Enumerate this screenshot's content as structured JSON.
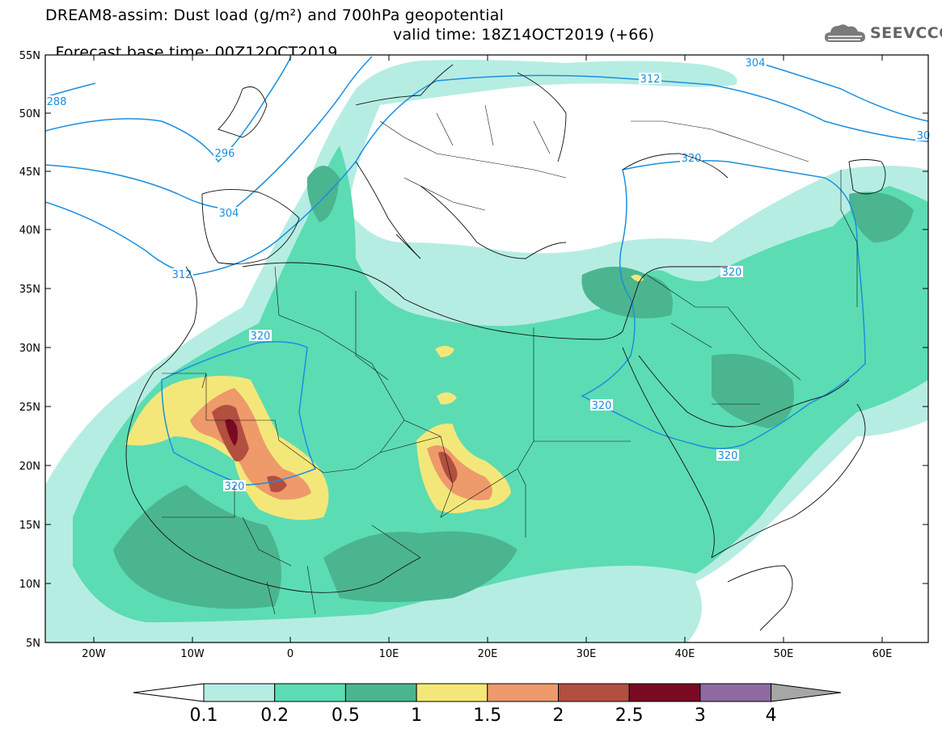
{
  "title": {
    "line1": "DREAM8-assim: Dust load (g/m²) and 700hPa geopotential",
    "base_time": "Forecast base time: 00Z12OCT2019",
    "valid_time": "valid time: 18Z14OCT2019 (+66)"
  },
  "logo": {
    "text": "SEEVCCC",
    "icon": "cloud-icon"
  },
  "axes": {
    "lat_labels": [
      "55N",
      "50N",
      "45N",
      "40N",
      "35N",
      "30N",
      "25N",
      "20N",
      "15N",
      "10N",
      "5N"
    ],
    "lon_labels": [
      "20W",
      "10W",
      "0",
      "10E",
      "20E",
      "30E",
      "40E",
      "50E",
      "60E"
    ]
  },
  "contours": {
    "labels": [
      "288",
      "296",
      "304",
      "312",
      "320",
      "320",
      "320",
      "320",
      "320",
      "320",
      "304",
      "312",
      "30"
    ],
    "color": "#1a8fe0"
  },
  "colorbar": {
    "labels": [
      "0.1",
      "0.2",
      "0.5",
      "1",
      "1.5",
      "2",
      "2.5",
      "3",
      "4"
    ],
    "colors": [
      "#b6ede3",
      "#5cdcb3",
      "#4bb58f",
      "#f4e77a",
      "#ee9a6a",
      "#b24f40",
      "#7a0a23",
      "#8e6aa0",
      "#a6a6a6"
    ]
  }
}
